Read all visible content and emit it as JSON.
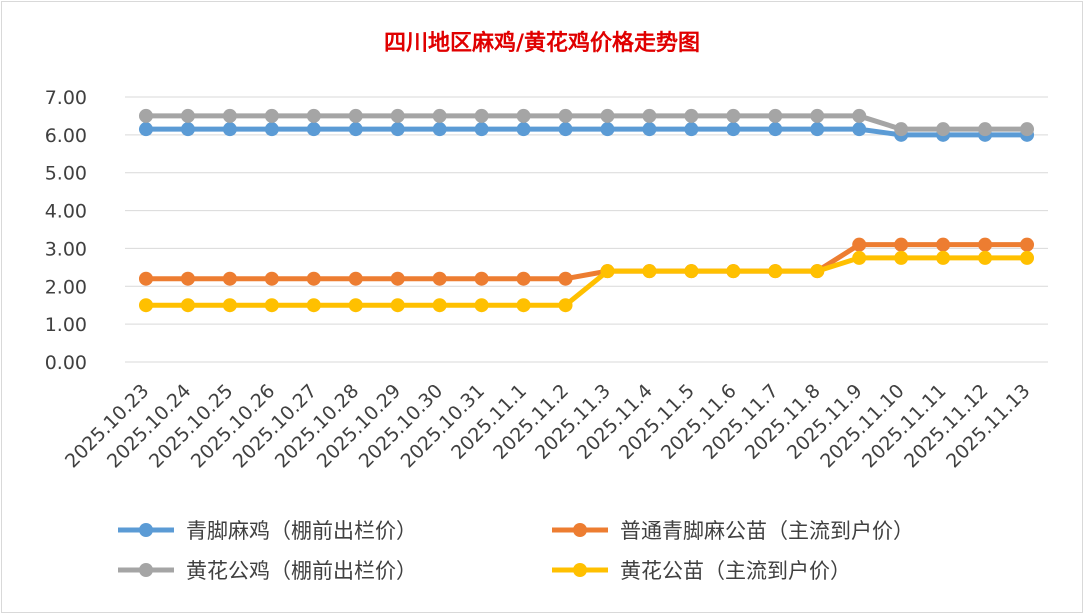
{
  "chart_data": {
    "type": "line",
    "title": "四川地区麻鸡/黄花鸡价格走势图",
    "xlabel": "",
    "ylabel": "",
    "ylim": [
      0,
      7
    ],
    "yticks": [
      "0.00",
      "1.00",
      "2.00",
      "3.00",
      "4.00",
      "5.00",
      "6.00",
      "7.00"
    ],
    "grid": "horizontal",
    "legend_position": "bottom",
    "categories": [
      "2025.10.23",
      "2025.10.24",
      "2025.10.25",
      "2025.10.26",
      "2025.10.27",
      "2025.10.28",
      "2025.10.29",
      "2025.10.30",
      "2025.10.31",
      "2025.11.1",
      "2025.11.2",
      "2025.11.3",
      "2025.11.4",
      "2025.11.5",
      "2025.11.6",
      "2025.11.7",
      "2025.11.8",
      "2025.11.9",
      "2025.11.10",
      "2025.11.11",
      "2025.11.12",
      "2025.11.13"
    ],
    "series": [
      {
        "name": "青脚麻鸡（棚前出栏价）",
        "color": "#5b9bd5",
        "values": [
          6.15,
          6.15,
          6.15,
          6.15,
          6.15,
          6.15,
          6.15,
          6.15,
          6.15,
          6.15,
          6.15,
          6.15,
          6.15,
          6.15,
          6.15,
          6.15,
          6.15,
          6.15,
          6.0,
          6.0,
          6.0,
          6.0
        ]
      },
      {
        "name": "普通青脚麻公苗（主流到户价）",
        "color": "#ed7d31",
        "values": [
          2.2,
          2.2,
          2.2,
          2.2,
          2.2,
          2.2,
          2.2,
          2.2,
          2.2,
          2.2,
          2.2,
          2.4,
          2.4,
          2.4,
          2.4,
          2.4,
          2.4,
          3.1,
          3.1,
          3.1,
          3.1,
          3.1
        ]
      },
      {
        "name": "黄花公鸡（棚前出栏价）",
        "color": "#a5a5a5",
        "values": [
          6.5,
          6.5,
          6.5,
          6.5,
          6.5,
          6.5,
          6.5,
          6.5,
          6.5,
          6.5,
          6.5,
          6.5,
          6.5,
          6.5,
          6.5,
          6.5,
          6.5,
          6.5,
          6.15,
          6.15,
          6.15,
          6.15
        ]
      },
      {
        "name": "黄花公苗（主流到户价）",
        "color": "#ffc000",
        "values": [
          1.5,
          1.5,
          1.5,
          1.5,
          1.5,
          1.5,
          1.5,
          1.5,
          1.5,
          1.5,
          1.5,
          2.4,
          2.4,
          2.4,
          2.4,
          2.4,
          2.4,
          2.75,
          2.75,
          2.75,
          2.75,
          2.75
        ]
      }
    ],
    "legend_order": [
      0,
      1,
      2,
      3
    ]
  }
}
